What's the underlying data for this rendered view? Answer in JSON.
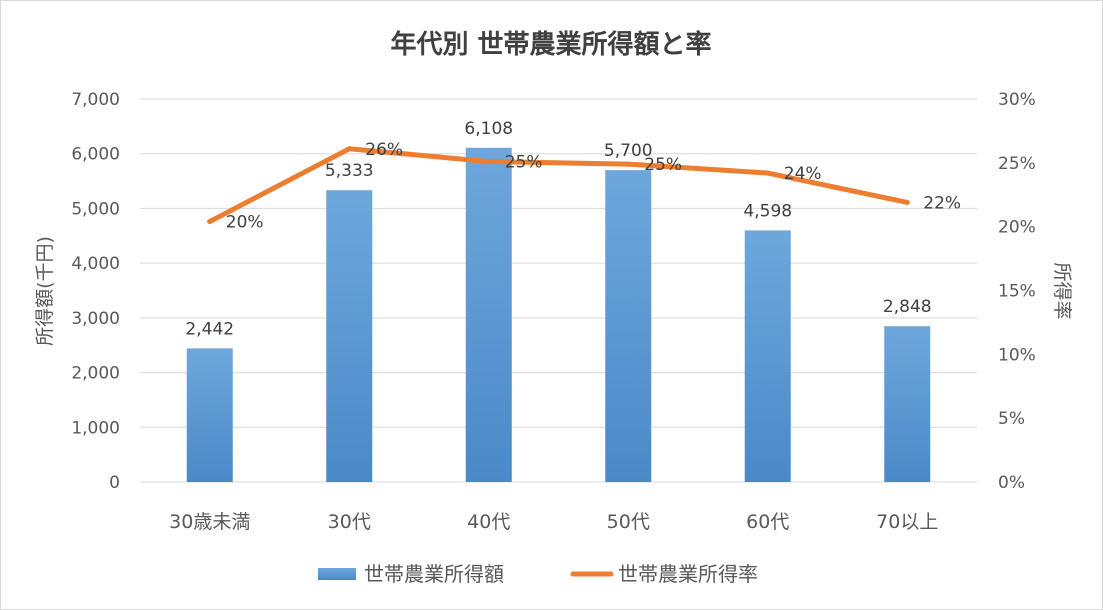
{
  "chart_data": {
    "type": "bar",
    "title": "年代別 世帯農業所得額と率",
    "categories": [
      "30歳未満",
      "30代",
      "40代",
      "50代",
      "60代",
      "70以上"
    ],
    "series": [
      {
        "name": "世帯農業所得額",
        "type": "bar",
        "axis": "left",
        "values": [
          2442,
          5333,
          6108,
          5700,
          4598,
          2848
        ],
        "labels": [
          "2,442",
          "5,333",
          "6,108",
          "5,700",
          "4,598",
          "2,848"
        ],
        "color": "#5b9bd5"
      },
      {
        "name": "世帯農業所得率",
        "type": "line",
        "axis": "right",
        "values": [
          20.4,
          26.1,
          25.1,
          24.9,
          24.2,
          21.9
        ],
        "labels": [
          "20%",
          "26%",
          "25%",
          "25%",
          "24%",
          "22%"
        ],
        "color": "#ed7d31"
      }
    ],
    "ylabel": "所得額(千円)",
    "ylabel_right": "所得率",
    "ylim": [
      0,
      7000
    ],
    "ylim_right": [
      0,
      30
    ],
    "yticks": [
      "0",
      "1,000",
      "2,000",
      "3,000",
      "4,000",
      "5,000",
      "6,000",
      "7,000"
    ],
    "yticks_right": [
      "0%",
      "5%",
      "10%",
      "15%",
      "20%",
      "25%",
      "30%"
    ],
    "grid": true,
    "legend": "bottom"
  }
}
